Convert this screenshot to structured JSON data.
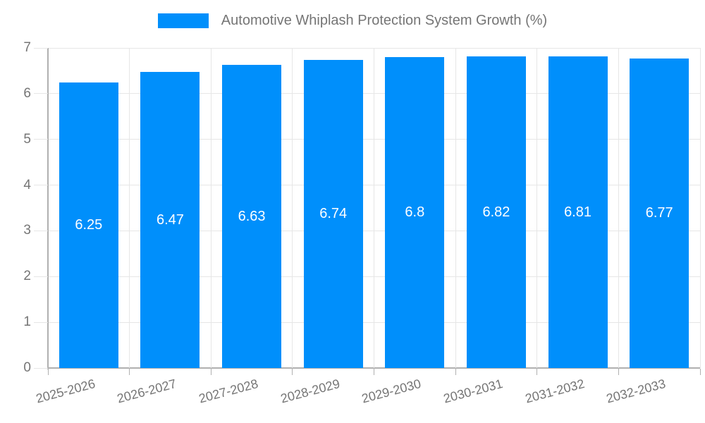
{
  "chart_data": {
    "type": "bar",
    "title": "Automotive Whiplash Protection System Growth (%)",
    "categories": [
      "2025-2026",
      "2026-2027",
      "2027-2028",
      "2028-2029",
      "2029-2030",
      "2030-2031",
      "2031-2032",
      "2032-2033"
    ],
    "values": [
      6.25,
      6.47,
      6.63,
      6.74,
      6.8,
      6.82,
      6.81,
      6.77
    ],
    "value_labels": [
      "6.25",
      "6.47",
      "6.63",
      "6.74",
      "6.8",
      "6.82",
      "6.81",
      "6.77"
    ],
    "xlabel": "",
    "ylabel": "",
    "ylim": [
      0,
      7
    ],
    "yticks": [
      0,
      1,
      2,
      3,
      4,
      5,
      6,
      7
    ],
    "grid": true,
    "legend_position": "top",
    "colors": {
      "bar": "#008FFB",
      "grid": "#e6e6e6",
      "axis": "#b0b0b0",
      "tick_text": "#757575",
      "title_text": "#757575",
      "value_text": "#ffffff",
      "background": "#ffffff"
    }
  }
}
